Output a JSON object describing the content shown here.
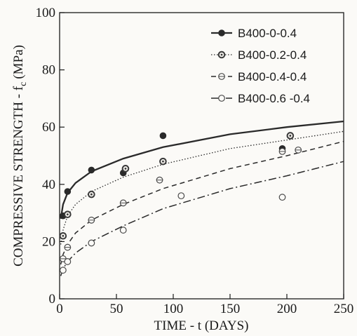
{
  "chart_data": {
    "type": "scatter",
    "xlabel": "TIME - t (DAYS)",
    "ylabel_main": "COMPRESSIVE STRENGTH - f",
    "ylabel_sub": "c",
    "ylabel_unit": "(MPa)",
    "xlim": [
      0,
      250
    ],
    "ylim": [
      0,
      100
    ],
    "x_ticks": [
      "0",
      "50",
      "100",
      "150",
      "200",
      "250"
    ],
    "y_ticks": [
      "0",
      "20",
      "40",
      "60",
      "80",
      "100"
    ],
    "grid": false,
    "legend_position": "top-right",
    "series": [
      {
        "name": "B400-0-0.4",
        "marker": "filled-circle",
        "line_style": "solid",
        "points": [
          [
            3,
            29
          ],
          [
            7,
            37.5
          ],
          [
            28,
            45
          ],
          [
            56,
            44
          ],
          [
            91,
            57
          ],
          [
            196,
            52.5
          ]
        ],
        "curve": [
          [
            1,
            28
          ],
          [
            3,
            33
          ],
          [
            7,
            37
          ],
          [
            14,
            40.5
          ],
          [
            28,
            44.5
          ],
          [
            56,
            49
          ],
          [
            91,
            53
          ],
          [
            150,
            57.5
          ],
          [
            200,
            60
          ],
          [
            250,
            62
          ]
        ]
      },
      {
        "name": "B400-0.2-0.4",
        "marker": "dotted-circle",
        "line_style": "dotted",
        "points": [
          [
            3,
            22
          ],
          [
            7,
            29.5
          ],
          [
            28,
            36.5
          ],
          [
            58,
            45.5
          ],
          [
            91,
            48
          ],
          [
            203,
            57
          ]
        ],
        "curve": [
          [
            1,
            19
          ],
          [
            3,
            24
          ],
          [
            7,
            29
          ],
          [
            14,
            33
          ],
          [
            28,
            37.5
          ],
          [
            56,
            42.5
          ],
          [
            91,
            47
          ],
          [
            150,
            52.5
          ],
          [
            200,
            55.5
          ],
          [
            250,
            58.5
          ]
        ]
      },
      {
        "name": "B400-0.4-0.4",
        "marker": "half-circle",
        "line_style": "dashed",
        "points": [
          [
            3,
            14
          ],
          [
            7,
            18
          ],
          [
            28,
            27.5
          ],
          [
            56,
            33.5
          ],
          [
            88,
            41.5
          ],
          [
            196,
            51.5
          ],
          [
            210,
            52
          ]
        ],
        "curve": [
          [
            1,
            12
          ],
          [
            3,
            15.5
          ],
          [
            7,
            19
          ],
          [
            14,
            23
          ],
          [
            28,
            27.5
          ],
          [
            56,
            33
          ],
          [
            91,
            38.5
          ],
          [
            150,
            45.5
          ],
          [
            200,
            50
          ],
          [
            250,
            55
          ]
        ]
      },
      {
        "name": "B400-0.6 -0.4",
        "marker": "open-circle",
        "line_style": "dash-dot",
        "points": [
          [
            3,
            10
          ],
          [
            7,
            13
          ],
          [
            28,
            19.5
          ],
          [
            56,
            24
          ],
          [
            107,
            36
          ],
          [
            196,
            35.5
          ]
        ],
        "curve": [
          [
            1,
            8
          ],
          [
            3,
            10.5
          ],
          [
            7,
            13
          ],
          [
            14,
            16
          ],
          [
            28,
            20
          ],
          [
            56,
            25.5
          ],
          [
            91,
            31.5
          ],
          [
            150,
            38.5
          ],
          [
            200,
            43
          ],
          [
            250,
            48
          ]
        ]
      }
    ]
  }
}
